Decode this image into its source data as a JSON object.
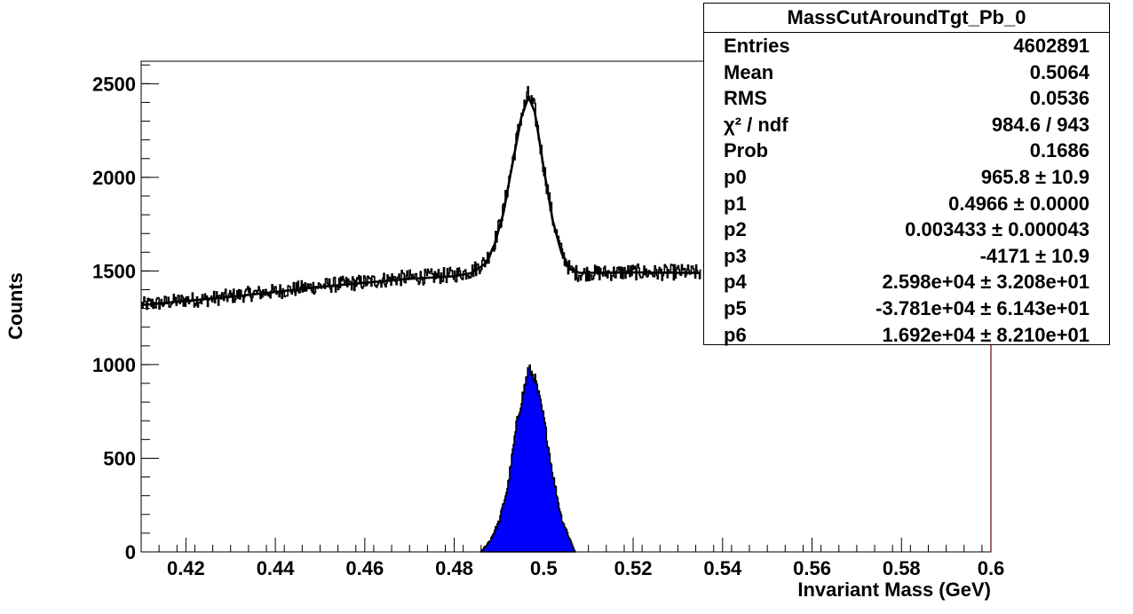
{
  "chart_data": {
    "type": "line",
    "xlabel": "Invariant Mass (GeV)",
    "ylabel": "Counts",
    "xlim": [
      0.41,
      0.6
    ],
    "ylim": [
      0,
      2620
    ],
    "xticks": [
      "0.42",
      "0.44",
      "0.46",
      "0.48",
      "0.5",
      "0.52",
      "0.54",
      "0.56",
      "0.58",
      "0.6"
    ],
    "yticks": [
      "0",
      "500",
      "1000",
      "1500",
      "2000",
      "2500"
    ],
    "grid": false,
    "series": [
      {
        "style": "histogram",
        "color": "#000000",
        "x": [
          0.41,
          0.415,
          0.42,
          0.425,
          0.43,
          0.435,
          0.44,
          0.445,
          0.45,
          0.455,
          0.46,
          0.465,
          0.47,
          0.475,
          0.48,
          0.484,
          0.487,
          0.489,
          0.491,
          0.493,
          0.495,
          0.4966,
          0.498,
          0.5,
          0.502,
          0.504,
          0.506,
          0.508,
          0.51,
          0.515,
          0.52,
          0.525,
          0.53,
          0.535
        ],
        "y": [
          1320,
          1330,
          1345,
          1350,
          1365,
          1380,
          1390,
          1405,
          1420,
          1430,
          1440,
          1455,
          1465,
          1470,
          1480,
          1500,
          1550,
          1650,
          1820,
          2080,
          2330,
          2440,
          2360,
          2060,
          1780,
          1600,
          1500,
          1485,
          1490,
          1490,
          1495,
          1490,
          1495,
          1490
        ]
      },
      {
        "style": "fit",
        "color": "#000000",
        "x": [
          0.41,
          0.42,
          0.43,
          0.44,
          0.45,
          0.46,
          0.47,
          0.48,
          0.484,
          0.487,
          0.489,
          0.491,
          0.493,
          0.495,
          0.4966,
          0.498,
          0.5,
          0.502,
          0.504,
          0.506,
          0.508,
          0.51,
          0.52,
          0.535
        ],
        "y": [
          1318,
          1340,
          1362,
          1388,
          1415,
          1437,
          1458,
          1472,
          1490,
          1540,
          1640,
          1810,
          2070,
          2320,
          2430,
          2350,
          2050,
          1770,
          1595,
          1510,
          1490,
          1490,
          1492,
          1490
        ]
      },
      {
        "style": "filled",
        "color": "#0000ff",
        "x": [
          0.486,
          0.488,
          0.49,
          0.492,
          0.494,
          0.4966,
          0.498,
          0.5,
          0.502,
          0.504,
          0.506,
          0.507
        ],
        "y": [
          0,
          60,
          160,
          350,
          690,
          980,
          930,
          720,
          420,
          180,
          60,
          0
        ]
      }
    ]
  },
  "stats": {
    "title": "MassCutAroundTgt_Pb_0",
    "rows": [
      {
        "name": "Entries",
        "value": "4602891"
      },
      {
        "name": "Mean",
        "value": "0.5064"
      },
      {
        "name": "RMS",
        "value": "0.0536"
      },
      {
        "name": "χ² / ndf",
        "value": "984.6 / 943"
      },
      {
        "name": "Prob",
        "value": "0.1686"
      },
      {
        "name": "p0",
        "value": "965.8 ± 10.9"
      },
      {
        "name": "p1",
        "value": "0.4966 ± 0.0000"
      },
      {
        "name": "p2",
        "value": "0.003433 ± 0.000043"
      },
      {
        "name": "p3",
        "value": "-4171 ± 10.9"
      },
      {
        "name": "p4",
        "value": "2.598e+04 ± 3.208e+01"
      },
      {
        "name": "p5",
        "value": "-3.781e+04 ± 6.143e+01"
      },
      {
        "name": "p6",
        "value": "1.692e+04 ± 8.210e+01"
      }
    ]
  }
}
